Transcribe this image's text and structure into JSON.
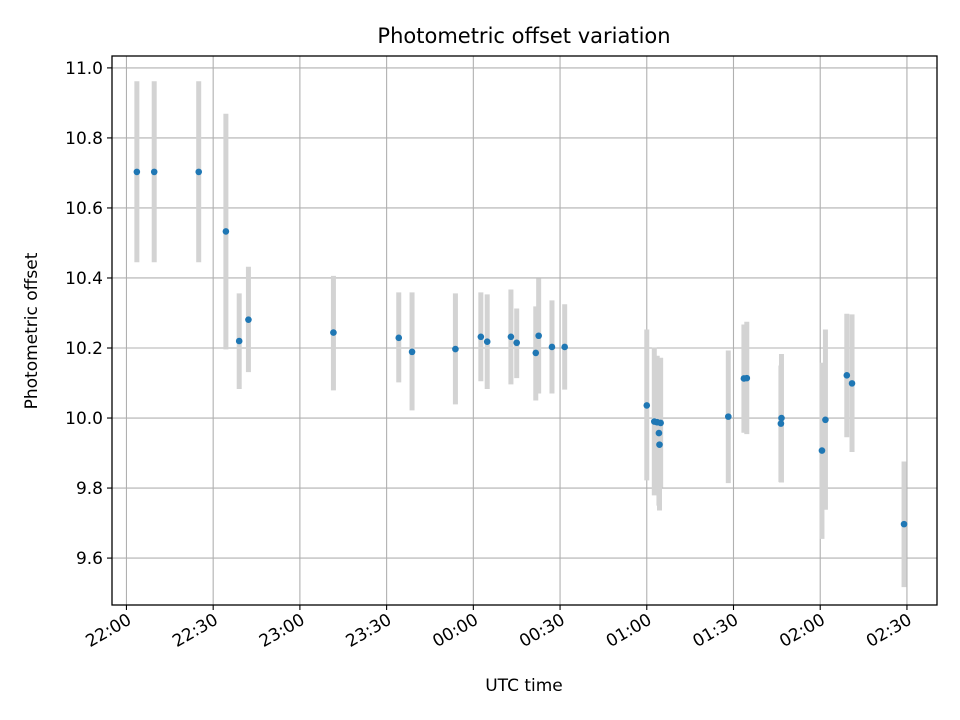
{
  "chart_data": {
    "type": "scatter",
    "title": "Photometric offset variation",
    "xlabel": "UTC time",
    "ylabel": "Photometric offset",
    "x_tick_labels": [
      "22:00",
      "22:30",
      "23:00",
      "23:30",
      "00:00",
      "00:30",
      "01:00",
      "01:30",
      "02:00",
      "02:30"
    ],
    "y_tick_labels": [
      "9.6",
      "9.8",
      "10.0",
      "10.2",
      "10.4",
      "10.6",
      "10.8",
      "11.0"
    ],
    "x_tick_values_min": [
      0,
      30,
      60,
      90,
      120,
      150,
      180,
      210,
      240,
      270
    ],
    "y_ticks": [
      9.6,
      9.8,
      10.0,
      10.2,
      10.4,
      10.6,
      10.8,
      11.0
    ],
    "xlim_min": [
      -5.0,
      280.4
    ],
    "ylim": [
      9.466,
      11.034
    ],
    "grid": true,
    "colors": {
      "point": "#1f77b4",
      "errorbar": "#d3d3d3",
      "grid": "#b0b0b0"
    },
    "points": [
      {
        "t_min": 3.6,
        "y": 10.703,
        "lo": 10.445,
        "hi": 10.962
      },
      {
        "t_min": 9.6,
        "y": 10.703,
        "lo": 10.445,
        "hi": 10.962
      },
      {
        "t_min": 25.0,
        "y": 10.703,
        "lo": 10.445,
        "hi": 10.962
      },
      {
        "t_min": 34.4,
        "y": 10.533,
        "lo": 10.196,
        "hi": 10.869
      },
      {
        "t_min": 39.0,
        "y": 10.22,
        "lo": 10.083,
        "hi": 10.356
      },
      {
        "t_min": 42.2,
        "y": 10.281,
        "lo": 10.131,
        "hi": 10.432
      },
      {
        "t_min": 71.6,
        "y": 10.244,
        "lo": 10.079,
        "hi": 10.406
      },
      {
        "t_min": 94.2,
        "y": 10.229,
        "lo": 10.102,
        "hi": 10.359
      },
      {
        "t_min": 98.8,
        "y": 10.189,
        "lo": 10.022,
        "hi": 10.359
      },
      {
        "t_min": 113.8,
        "y": 10.197,
        "lo": 10.039,
        "hi": 10.356
      },
      {
        "t_min": 122.6,
        "y": 10.232,
        "lo": 10.105,
        "hi": 10.359
      },
      {
        "t_min": 124.8,
        "y": 10.218,
        "lo": 10.083,
        "hi": 10.353
      },
      {
        "t_min": 133.0,
        "y": 10.232,
        "lo": 10.096,
        "hi": 10.367
      },
      {
        "t_min": 135.0,
        "y": 10.215,
        "lo": 10.114,
        "hi": 10.313
      },
      {
        "t_min": 141.6,
        "y": 10.186,
        "lo": 10.05,
        "hi": 10.319
      },
      {
        "t_min": 142.6,
        "y": 10.235,
        "lo": 10.07,
        "hi": 10.399
      },
      {
        "t_min": 147.2,
        "y": 10.203,
        "lo": 10.07,
        "hi": 10.336
      },
      {
        "t_min": 151.6,
        "y": 10.203,
        "lo": 10.081,
        "hi": 10.325
      },
      {
        "t_min": 180.0,
        "y": 10.036,
        "lo": 9.822,
        "hi": 10.253
      },
      {
        "t_min": 182.6,
        "y": 9.99,
        "lo": 9.779,
        "hi": 10.201
      },
      {
        "t_min": 183.6,
        "y": 9.988,
        "lo": 9.797,
        "hi": 10.178
      },
      {
        "t_min": 184.2,
        "y": 9.957,
        "lo": 9.75,
        "hi": 10.163
      },
      {
        "t_min": 184.4,
        "y": 9.924,
        "lo": 9.736,
        "hi": 10.115
      },
      {
        "t_min": 184.8,
        "y": 9.986,
        "lo": 9.802,
        "hi": 10.172
      },
      {
        "t_min": 208.2,
        "y": 10.004,
        "lo": 9.814,
        "hi": 10.193
      },
      {
        "t_min": 213.6,
        "y": 10.113,
        "lo": 9.958,
        "hi": 10.267
      },
      {
        "t_min": 214.6,
        "y": 10.114,
        "lo": 9.954,
        "hi": 10.275
      },
      {
        "t_min": 226.4,
        "y": 9.984,
        "lo": 9.817,
        "hi": 10.15
      },
      {
        "t_min": 226.6,
        "y": 10.0,
        "lo": 9.816,
        "hi": 10.183
      },
      {
        "t_min": 240.6,
        "y": 9.907,
        "lo": 9.655,
        "hi": 10.158
      },
      {
        "t_min": 241.8,
        "y": 9.995,
        "lo": 9.738,
        "hi": 10.253
      },
      {
        "t_min": 249.2,
        "y": 10.122,
        "lo": 9.945,
        "hi": 10.298
      },
      {
        "t_min": 251.0,
        "y": 10.099,
        "lo": 9.903,
        "hi": 10.296
      },
      {
        "t_min": 269.0,
        "y": 9.697,
        "lo": 9.517,
        "hi": 9.876
      }
    ]
  }
}
